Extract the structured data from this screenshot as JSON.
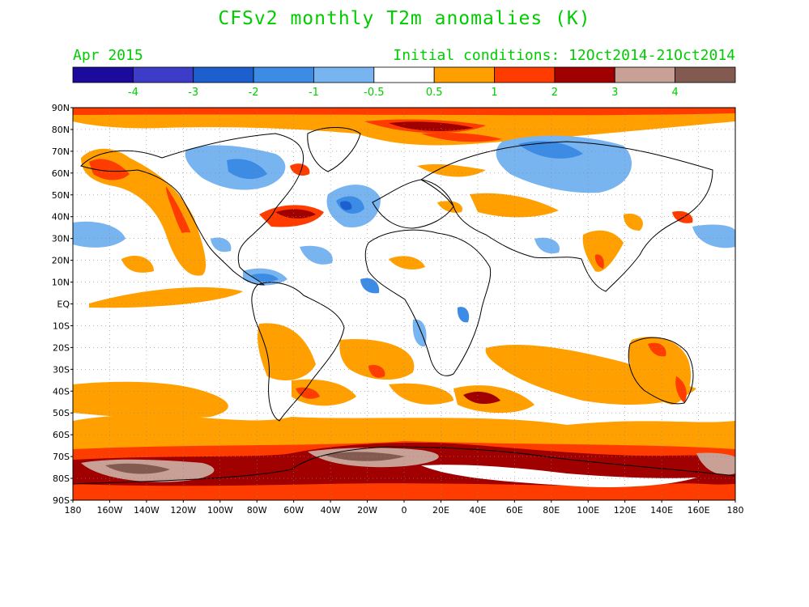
{
  "title": "CFSv2 monthly T2m anomalies (K)",
  "valid_month": "Apr 2015",
  "initial_conditions": "Initial conditions: 12Oct2014-21Oct2014",
  "text_color": "#00cc00",
  "colorbar": {
    "colors": [
      "#1c0a9c",
      "#3c3cc8",
      "#1e5fd0",
      "#3c8ce6",
      "#78b4f0",
      "#ffffff",
      "#ffa000",
      "#ff3c00",
      "#a00000",
      "#c8a096",
      "#825a50"
    ],
    "labels": [
      "-4",
      "-3",
      "-2",
      "-1",
      "-0.5",
      "0.5",
      "1",
      "2",
      "3",
      "4"
    ]
  },
  "lat_labels": [
    "90N",
    "80N",
    "70N",
    "60N",
    "50N",
    "40N",
    "30N",
    "20N",
    "10N",
    "EQ",
    "10S",
    "20S",
    "30S",
    "40S",
    "50S",
    "60S",
    "70S",
    "80S",
    "90S"
  ],
  "lon_labels": [
    "180",
    "160W",
    "140W",
    "120W",
    "100W",
    "80W",
    "60W",
    "40W",
    "20W",
    "0",
    "20E",
    "40E",
    "60E",
    "80E",
    "100E",
    "120E",
    "140E",
    "160E",
    "180"
  ]
}
